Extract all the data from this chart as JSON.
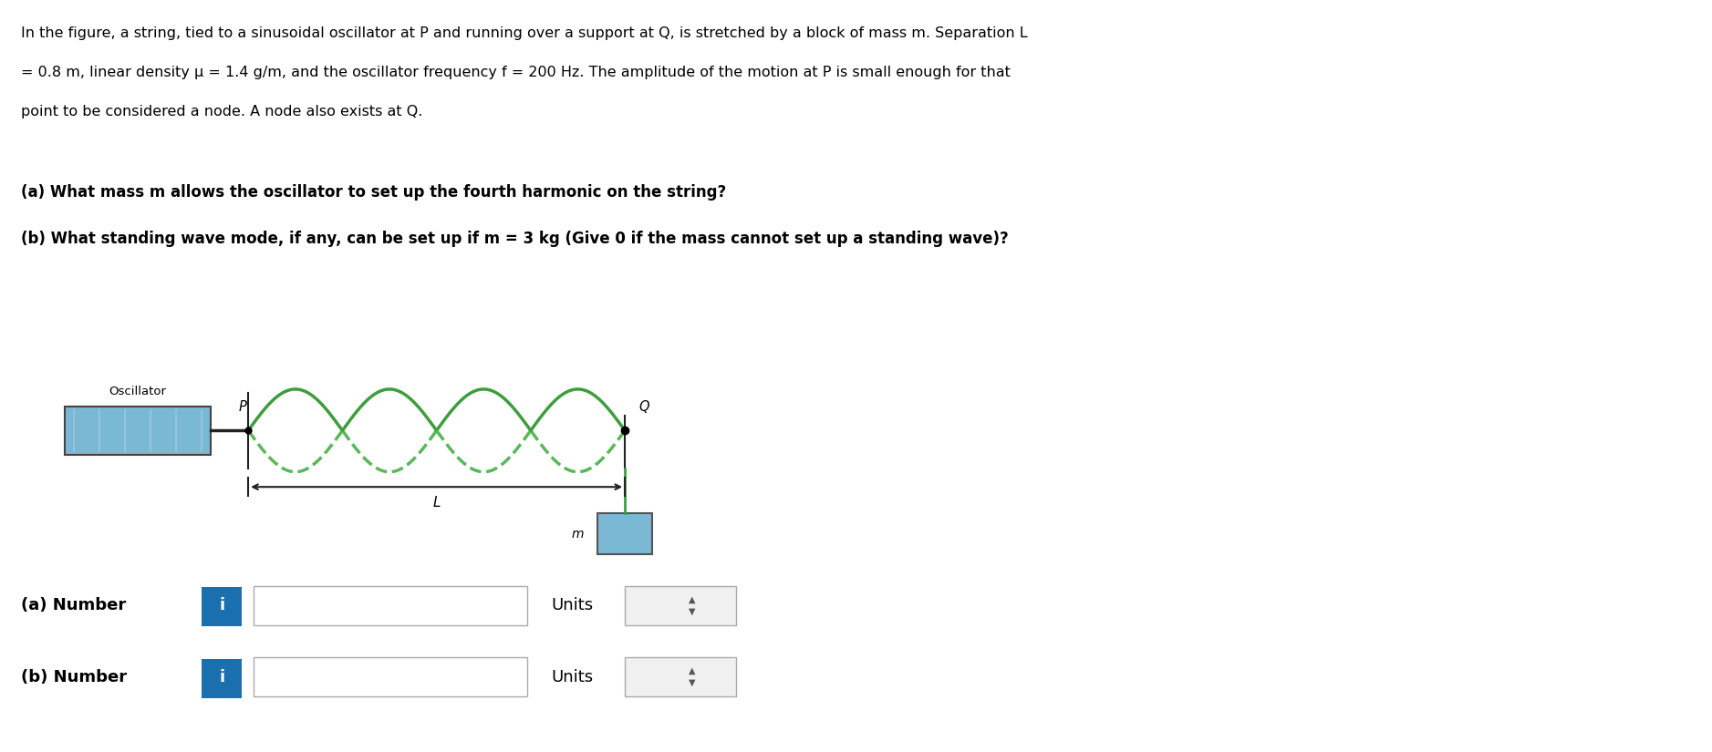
{
  "title_line1": "In the figure, a string, tied to a sinusoidal oscillator at P and running over a support at Q, is stretched by a block of mass m. Separation L",
  "title_line2": "= 0.8 m, linear density μ = 1.4 g/m, and the oscillator frequency f = 200 Hz. The amplitude of the motion at P is small enough for that",
  "title_line3": "point to be considered a node. A node also exists at Q.",
  "question_a": "(a) What mass m allows the oscillator to set up the fourth harmonic on the string?",
  "question_b": "(b) What standing wave mode, if any, can be set up if m = 3 kg (Give 0 if the mass cannot set up a standing wave)?",
  "oscillator_label": "Oscillator",
  "P_label": "P",
  "Q_label": "Q",
  "L_label": "L",
  "m_label": "m",
  "bg_color": "#ffffff",
  "text_color": "#000000",
  "wave_color_solid": "#3d9e3d",
  "wave_color_dashed": "#5ab85a",
  "oscillator_color": "#7ab8d4",
  "block_color": "#7ab8d4",
  "input_box_color": "#ffffff",
  "input_border_color": "#aaaaaa",
  "info_button_color": "#1a6faf",
  "units_box_color": "#f0f0f0",
  "num_harmonics": 4,
  "wave_amplitude": 0.055,
  "fig_width": 18.77,
  "fig_height": 8.25
}
